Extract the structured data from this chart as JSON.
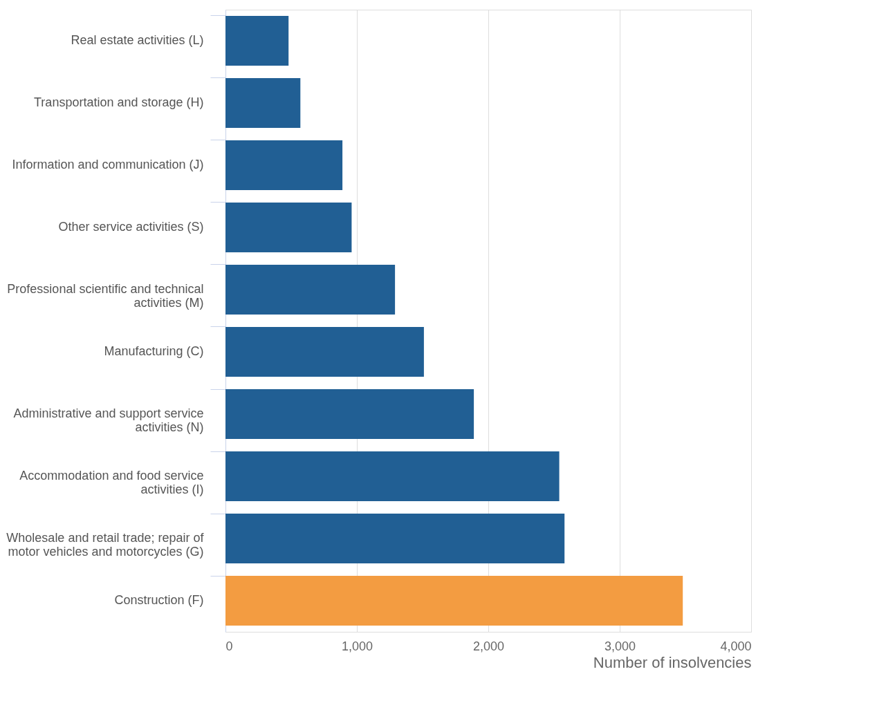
{
  "chart_data": {
    "type": "bar",
    "orientation": "horizontal",
    "xlabel": "Number of insolvencies",
    "categories": [
      "Real estate activities (L)",
      "Transportation and storage (H)",
      "Information and communication (J)",
      "Other service activities (S)",
      "Professional scientific and technical activities (M)",
      "Manufacturing (C)",
      "Administrative and support service activities (N)",
      "Accommodation and food service activities (I)",
      "Wholesale and retail trade; repair of motor vehicles and motorcycles (G)",
      "Construction (F)"
    ],
    "values": [
      480,
      570,
      890,
      960,
      1290,
      1510,
      1890,
      2540,
      2580,
      3480
    ],
    "colors": [
      "#215f94",
      "#215f94",
      "#215f94",
      "#215f94",
      "#215f94",
      "#215f94",
      "#215f94",
      "#215f94",
      "#215f94",
      "#f39c41"
    ],
    "xlim": [
      0,
      4000
    ],
    "xticks": [
      0,
      {
        "value": 1000,
        "label": "1,000"
      },
      {
        "value": 2000,
        "label": "2,000"
      },
      {
        "value": 3000,
        "label": "3,000"
      },
      {
        "value": 4000,
        "label": "4,000"
      }
    ],
    "grid": "x"
  }
}
